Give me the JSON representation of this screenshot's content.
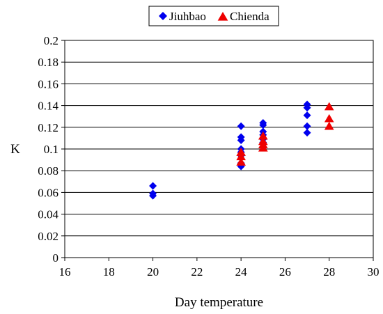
{
  "chart_data": {
    "type": "scatter",
    "xlabel": "Day temperature",
    "ylabel": "K",
    "xlim": [
      16,
      30
    ],
    "ylim": [
      0,
      0.2
    ],
    "x_ticks": [
      "16",
      "18",
      "20",
      "22",
      "24",
      "26",
      "28",
      "30"
    ],
    "y_ticks": [
      "0",
      "0.02",
      "0.04",
      "0.06",
      "0.08",
      "0.1",
      "0.12",
      "0.14",
      "0.16",
      "0.18",
      "0.2"
    ],
    "grid": "horizontal",
    "legend_position": "top-center",
    "series": [
      {
        "name": "Jiuhbao",
        "marker": "diamond",
        "color": "#0000ee",
        "points": [
          [
            20,
            0.066
          ],
          [
            20,
            0.059
          ],
          [
            20,
            0.057
          ],
          [
            24,
            0.121
          ],
          [
            24,
            0.111
          ],
          [
            24,
            0.108
          ],
          [
            24,
            0.1
          ],
          [
            24,
            0.097
          ],
          [
            24,
            0.094
          ],
          [
            24,
            0.087
          ],
          [
            24,
            0.084
          ],
          [
            25,
            0.124
          ],
          [
            25,
            0.122
          ],
          [
            25,
            0.116
          ],
          [
            25,
            0.113
          ],
          [
            25,
            0.109
          ],
          [
            25,
            0.106
          ],
          [
            25,
            0.102
          ],
          [
            27,
            0.141
          ],
          [
            27,
            0.138
          ],
          [
            27,
            0.131
          ],
          [
            27,
            0.121
          ],
          [
            27,
            0.115
          ]
        ]
      },
      {
        "name": "Chienda",
        "marker": "triangle",
        "color": "#ee0000",
        "points": [
          [
            24,
            0.097
          ],
          [
            24,
            0.093
          ],
          [
            24,
            0.088
          ],
          [
            25,
            0.112
          ],
          [
            25,
            0.107
          ],
          [
            25,
            0.104
          ],
          [
            25,
            0.101
          ],
          [
            28,
            0.139
          ],
          [
            28,
            0.128
          ],
          [
            28,
            0.121
          ]
        ]
      }
    ]
  }
}
